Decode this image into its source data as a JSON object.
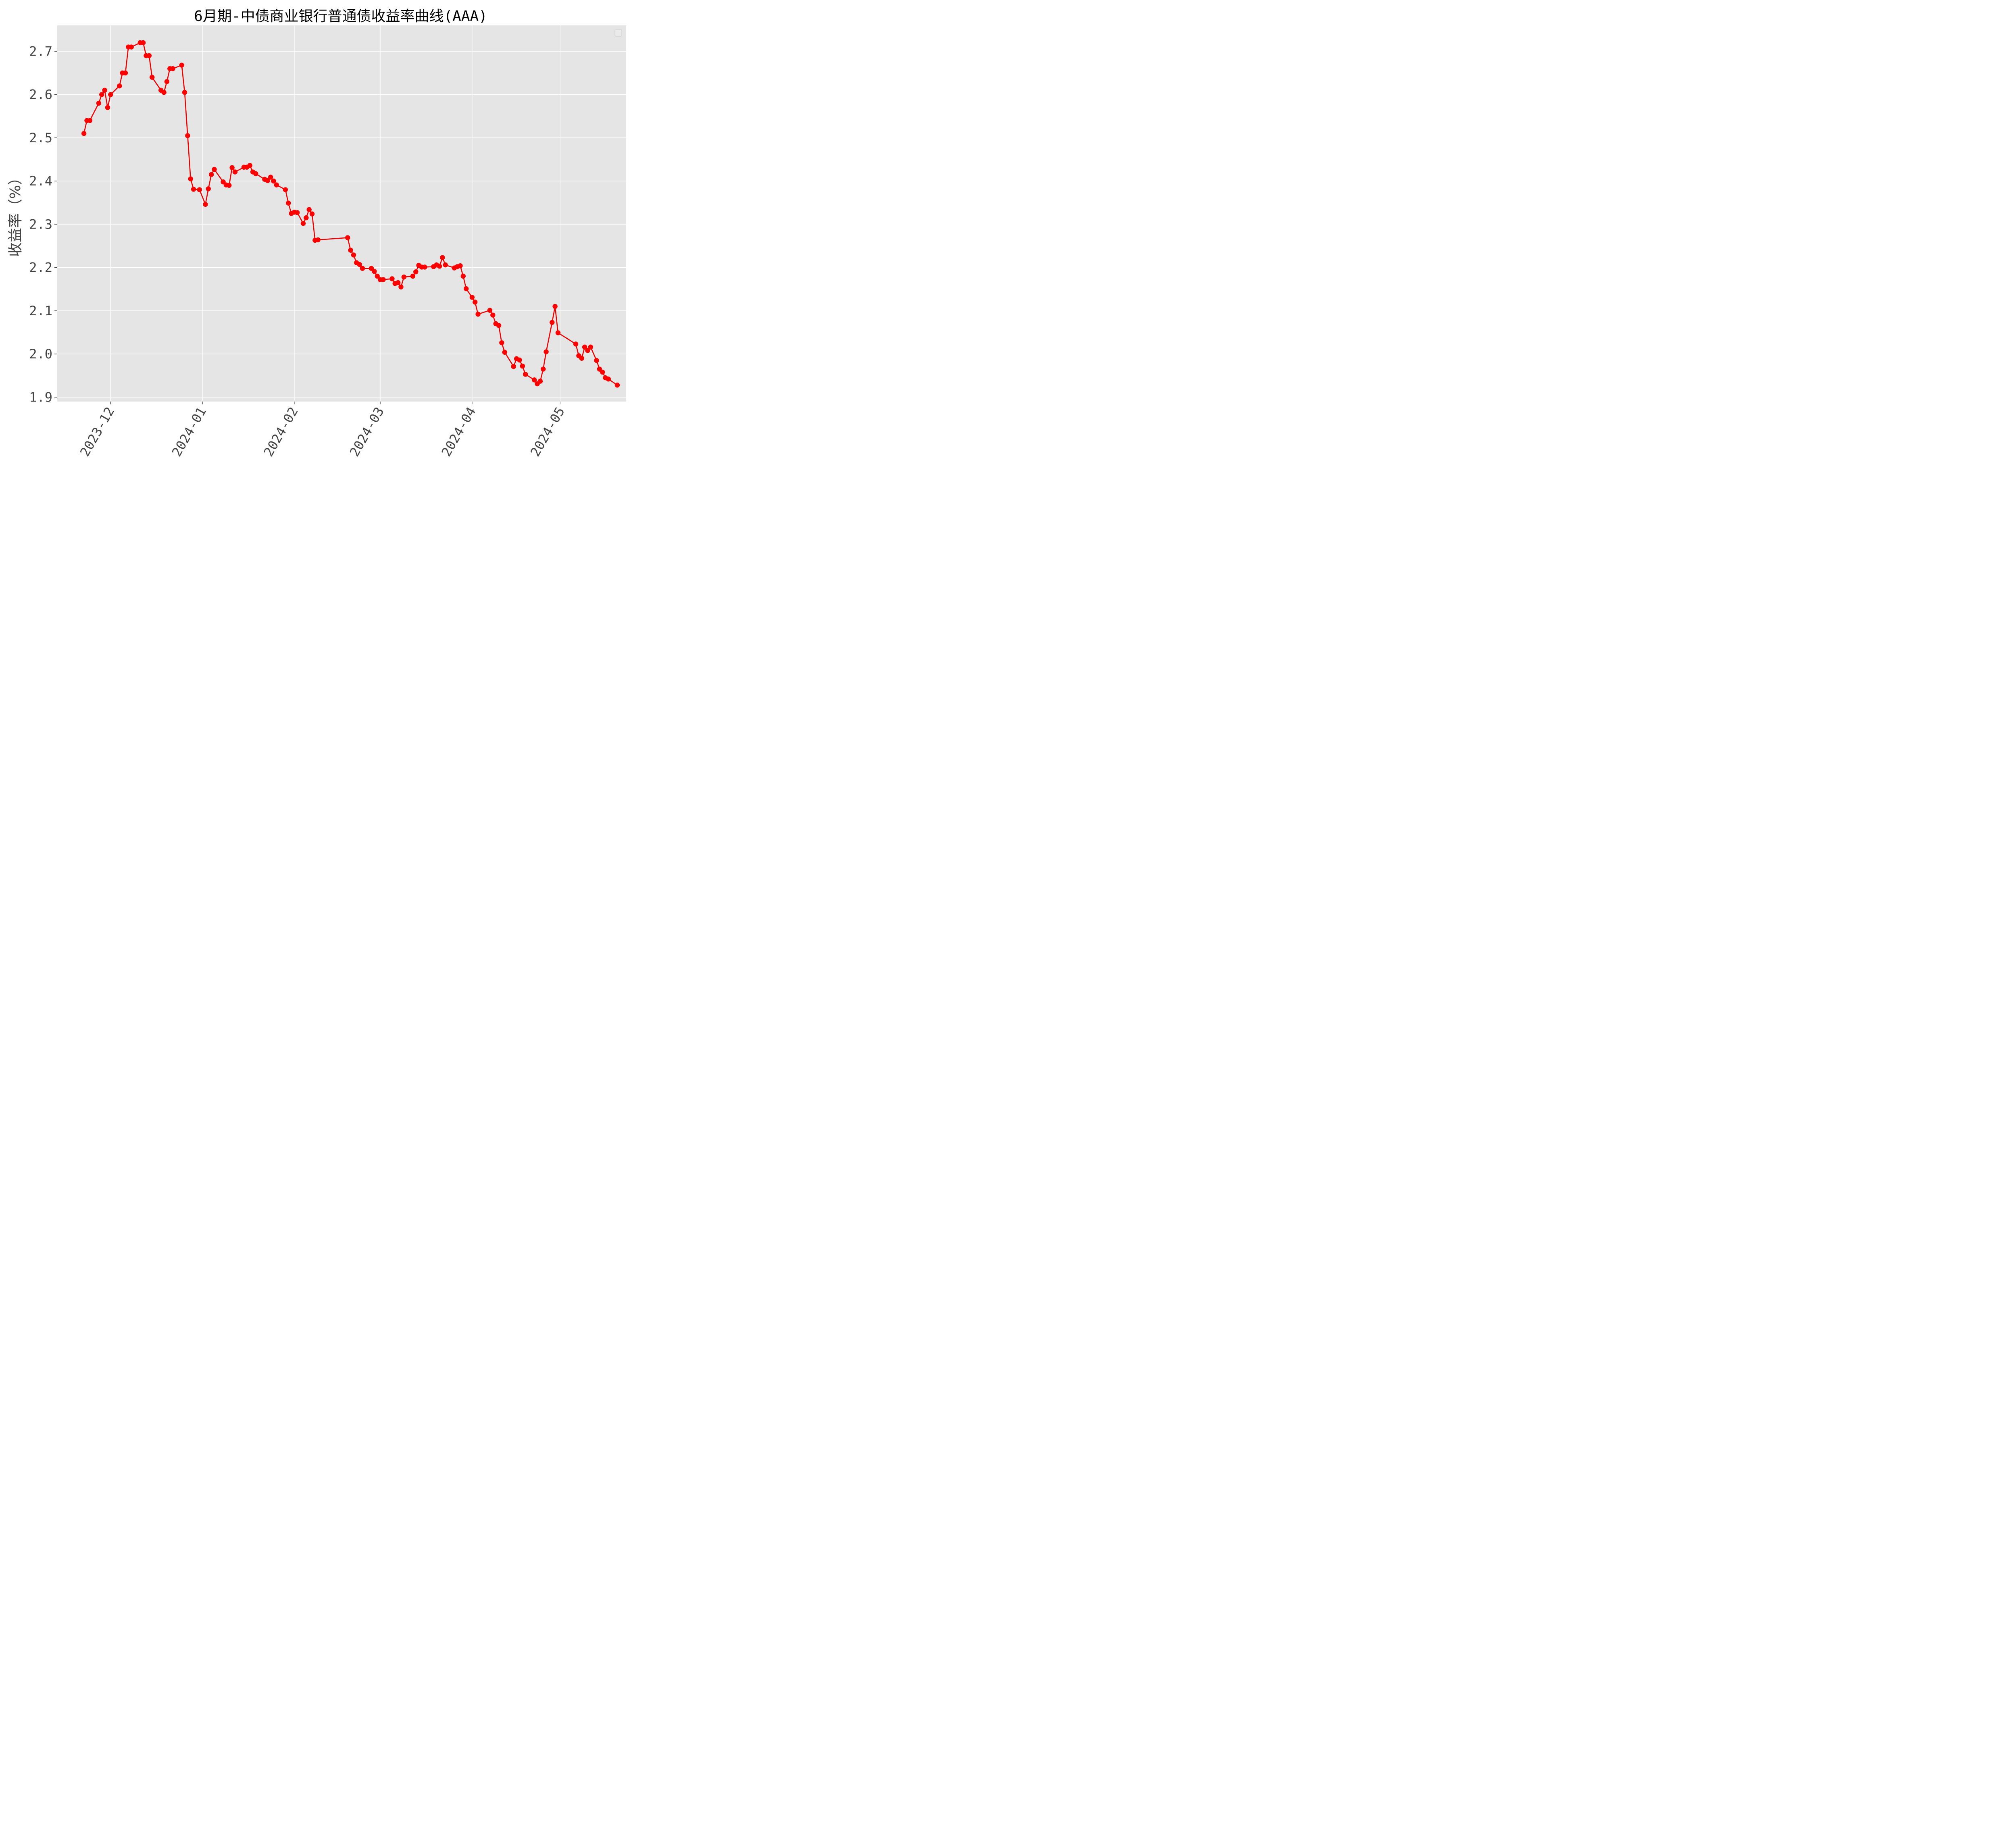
{
  "chart_data": {
    "type": "line",
    "title": "6月期-中债商业银行普通债收益率曲线(AAA)",
    "xlabel": "",
    "ylabel": "收益率（%）",
    "ylim": [
      1.89,
      2.76
    ],
    "xlim": [
      "2023-11-13",
      "2024-05-23"
    ],
    "yticks": [
      1.9,
      2.0,
      2.1,
      2.2,
      2.3,
      2.4,
      2.5,
      2.6,
      2.7
    ],
    "ytick_labels": [
      "1.9",
      "2.0",
      "2.1",
      "2.2",
      "2.3",
      "2.4",
      "2.5",
      "2.6",
      "2.7"
    ],
    "xticks": [
      "2023-12-01",
      "2024-01-01",
      "2024-02-01",
      "2024-03-01",
      "2024-04-01",
      "2024-05-01"
    ],
    "xtick_labels": [
      "2023-12",
      "2024-01",
      "2024-02",
      "2024-03",
      "2024-04",
      "2024-05"
    ],
    "grid": true,
    "legend": "top-right, empty",
    "colors": {
      "background": "#e5e5e5",
      "grid": "#ffffff",
      "line": "#ee0000",
      "marker": "#ff0000"
    },
    "series": [
      {
        "points": [
          [
            "2023-11-22",
            2.51
          ],
          [
            "2023-11-23",
            2.54
          ],
          [
            "2023-11-24",
            2.54
          ],
          [
            "2023-11-27",
            2.58
          ],
          [
            "2023-11-28",
            2.6
          ],
          [
            "2023-11-29",
            2.61
          ],
          [
            "2023-11-30",
            2.57
          ],
          [
            "2023-12-01",
            2.6
          ],
          [
            "2023-12-04",
            2.62
          ],
          [
            "2023-12-05",
            2.65
          ],
          [
            "2023-12-06",
            2.65
          ],
          [
            "2023-12-07",
            2.71
          ],
          [
            "2023-12-08",
            2.71
          ],
          [
            "2023-12-11",
            2.72
          ],
          [
            "2023-12-12",
            2.72
          ],
          [
            "2023-12-13",
            2.69
          ],
          [
            "2023-12-14",
            2.69
          ],
          [
            "2023-12-15",
            2.64
          ],
          [
            "2023-12-18",
            2.61
          ],
          [
            "2023-12-19",
            2.605
          ],
          [
            "2023-12-20",
            2.63
          ],
          [
            "2023-12-21",
            2.66
          ],
          [
            "2023-12-22",
            2.66
          ],
          [
            "2023-12-25",
            2.668
          ],
          [
            "2023-12-26",
            2.605
          ],
          [
            "2023-12-27",
            2.505
          ],
          [
            "2023-12-28",
            2.405
          ],
          [
            "2023-12-29",
            2.381
          ],
          [
            "2023-12-31",
            2.38
          ],
          [
            "2024-01-02",
            2.346
          ],
          [
            "2024-01-03",
            2.382
          ],
          [
            "2024-01-04",
            2.415
          ],
          [
            "2024-01-05",
            2.427
          ],
          [
            "2024-01-08",
            2.398
          ],
          [
            "2024-01-09",
            2.391
          ],
          [
            "2024-01-10",
            2.39
          ],
          [
            "2024-01-11",
            2.431
          ],
          [
            "2024-01-12",
            2.421
          ],
          [
            "2024-01-15",
            2.432
          ],
          [
            "2024-01-16",
            2.432
          ],
          [
            "2024-01-17",
            2.436
          ],
          [
            "2024-01-18",
            2.421
          ],
          [
            "2024-01-19",
            2.417
          ],
          [
            "2024-01-22",
            2.404
          ],
          [
            "2024-01-23",
            2.401
          ],
          [
            "2024-01-24",
            2.409
          ],
          [
            "2024-01-25",
            2.4
          ],
          [
            "2024-01-26",
            2.391
          ],
          [
            "2024-01-29",
            2.38
          ],
          [
            "2024-01-30",
            2.349
          ],
          [
            "2024-01-31",
            2.325
          ],
          [
            "2024-02-01",
            2.328
          ],
          [
            "2024-02-02",
            2.327
          ],
          [
            "2024-02-04",
            2.302
          ],
          [
            "2024-02-05",
            2.315
          ],
          [
            "2024-02-06",
            2.334
          ],
          [
            "2024-02-07",
            2.324
          ],
          [
            "2024-02-08",
            2.263
          ],
          [
            "2024-02-09",
            2.264
          ],
          [
            "2024-02-19",
            2.269
          ],
          [
            "2024-02-20",
            2.24
          ],
          [
            "2024-02-21",
            2.229
          ],
          [
            "2024-02-22",
            2.211
          ],
          [
            "2024-02-23",
            2.207
          ],
          [
            "2024-02-24",
            2.198
          ],
          [
            "2024-02-27",
            2.198
          ],
          [
            "2024-02-28",
            2.191
          ],
          [
            "2024-02-29",
            2.18
          ],
          [
            "2024-03-01",
            2.172
          ],
          [
            "2024-03-02",
            2.172
          ],
          [
            "2024-03-05",
            2.174
          ],
          [
            "2024-03-06",
            2.163
          ],
          [
            "2024-03-07",
            2.165
          ],
          [
            "2024-03-08",
            2.155
          ],
          [
            "2024-03-09",
            2.178
          ],
          [
            "2024-03-12",
            2.18
          ],
          [
            "2024-03-13",
            2.19
          ],
          [
            "2024-03-14",
            2.205
          ],
          [
            "2024-03-15",
            2.201
          ],
          [
            "2024-03-16",
            2.201
          ],
          [
            "2024-03-19",
            2.202
          ],
          [
            "2024-03-20",
            2.206
          ],
          [
            "2024-03-21",
            2.203
          ],
          [
            "2024-03-22",
            2.223
          ],
          [
            "2024-03-23",
            2.206
          ],
          [
            "2024-03-26",
            2.199
          ],
          [
            "2024-03-27",
            2.202
          ],
          [
            "2024-03-28",
            2.204
          ],
          [
            "2024-03-29",
            2.18
          ],
          [
            "2024-03-30",
            2.151
          ],
          [
            "2024-04-01",
            2.131
          ],
          [
            "2024-04-02",
            2.12
          ],
          [
            "2024-04-03",
            2.092
          ],
          [
            "2024-04-07",
            2.101
          ],
          [
            "2024-04-08",
            2.09
          ],
          [
            "2024-04-09",
            2.07
          ],
          [
            "2024-04-10",
            2.066
          ],
          [
            "2024-04-11",
            2.026
          ],
          [
            "2024-04-12",
            2.004
          ],
          [
            "2024-04-15",
            1.971
          ],
          [
            "2024-04-16",
            1.989
          ],
          [
            "2024-04-17",
            1.986
          ],
          [
            "2024-04-18",
            1.972
          ],
          [
            "2024-04-19",
            1.953
          ],
          [
            "2024-04-22",
            1.94
          ],
          [
            "2024-04-23",
            1.931
          ],
          [
            "2024-04-24",
            1.937
          ],
          [
            "2024-04-25",
            1.965
          ],
          [
            "2024-04-26",
            2.005
          ],
          [
            "2024-04-28",
            2.073
          ],
          [
            "2024-04-29",
            2.11
          ],
          [
            "2024-04-30",
            2.049
          ],
          [
            "2024-05-06",
            2.023
          ],
          [
            "2024-05-07",
            1.996
          ],
          [
            "2024-05-08",
            1.99
          ],
          [
            "2024-05-09",
            2.016
          ],
          [
            "2024-05-10",
            2.008
          ],
          [
            "2024-05-11",
            2.016
          ],
          [
            "2024-05-13",
            1.985
          ],
          [
            "2024-05-14",
            1.965
          ],
          [
            "2024-05-15",
            1.958
          ],
          [
            "2024-05-16",
            1.945
          ],
          [
            "2024-05-17",
            1.942
          ],
          [
            "2024-05-20",
            1.928
          ]
        ]
      }
    ]
  }
}
